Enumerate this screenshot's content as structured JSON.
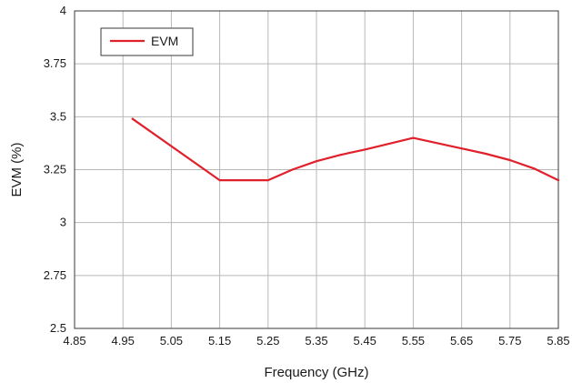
{
  "chart_data": {
    "type": "line",
    "title": "",
    "xlabel": "Frequency (GHz)",
    "ylabel": "EVM (%)",
    "xlim": [
      4.85,
      5.85
    ],
    "ylim": [
      2.5,
      4
    ],
    "x_ticks": [
      "4.85",
      "4.95",
      "5.05",
      "5.15",
      "5.25",
      "5.35",
      "5.45",
      "5.55",
      "5.65",
      "5.75",
      "5.85"
    ],
    "y_ticks": [
      "2.5",
      "2.75",
      "3",
      "3.25",
      "3.5",
      "3.75",
      "4"
    ],
    "grid": true,
    "legend_position": "top-left",
    "series": [
      {
        "name": "EVM",
        "color": "#e0202b",
        "x": [
          4.97,
          5.15,
          5.25,
          5.3,
          5.35,
          5.4,
          5.45,
          5.55,
          5.65,
          5.7,
          5.75,
          5.8,
          5.85
        ],
        "y": [
          3.49,
          3.2,
          3.2,
          3.25,
          3.29,
          3.32,
          3.345,
          3.4,
          3.35,
          3.325,
          3.295,
          3.255,
          3.2
        ]
      }
    ]
  }
}
